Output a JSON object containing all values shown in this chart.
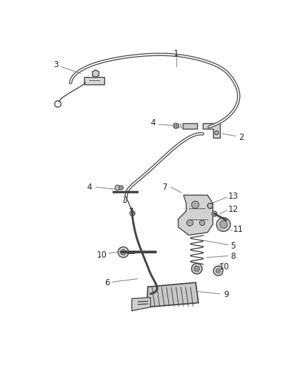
{
  "background_color": "#ffffff",
  "line_color": "#444444",
  "label_color": "#222222",
  "label_fontsize": 8.5,
  "fig_width": 4.38,
  "fig_height": 5.33,
  "dpi": 100
}
